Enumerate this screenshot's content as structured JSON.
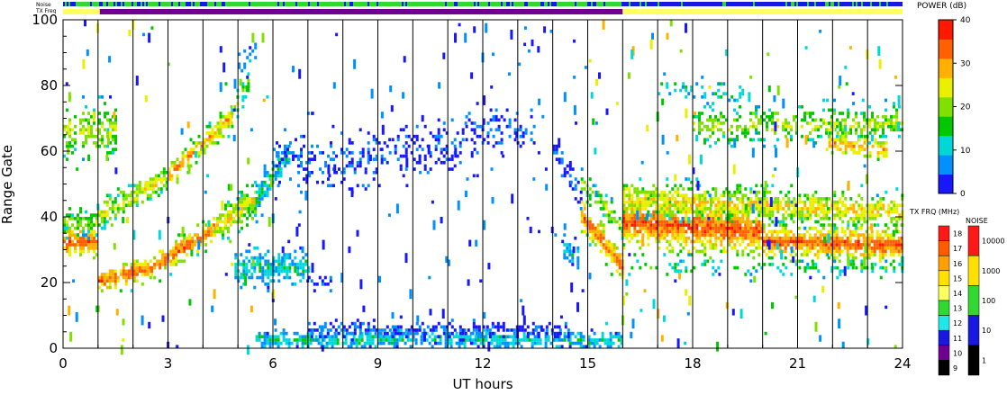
{
  "chart_data": {
    "type": "heatmap",
    "xlabel": "UT hours",
    "ylabel": "Range Gate",
    "xlim": [
      0,
      24
    ],
    "ylim": [
      0,
      100
    ],
    "x_ticks": [
      0,
      3,
      6,
      9,
      12,
      15,
      18,
      21,
      24
    ],
    "y_ticks": [
      0,
      20,
      40,
      60,
      80,
      100
    ],
    "x_tick_labels": [
      "0",
      "3",
      "6",
      "9",
      "12",
      "15",
      "18",
      "21",
      "24"
    ],
    "y_tick_labels": [
      "0",
      "20",
      "40",
      "60",
      "80",
      "100"
    ],
    "strip_labels": {
      "noise": "Noise",
      "txfreq": "TX Freq"
    },
    "power_colorbar": {
      "title": "POWER (dB)",
      "range": [
        0,
        40
      ],
      "ticks": [
        0,
        10,
        20,
        30,
        40
      ],
      "tick_labels": [
        "0",
        "10",
        "20",
        "30",
        "40"
      ],
      "colors": [
        "#1818ff",
        "#0090ff",
        "#00d8d8",
        "#00c800",
        "#80e000",
        "#e8f000",
        "#ffb000",
        "#ff6000",
        "#ff1800"
      ]
    },
    "txfreq_colorbar": {
      "title": "TX FRQ (MHz)",
      "labels": [
        "18",
        "17",
        "16",
        "15",
        "14",
        "13",
        "12",
        "11",
        "10",
        "9"
      ],
      "colors": [
        "#ff1818",
        "#ff5a00",
        "#ffa000",
        "#ffe000",
        "#ffff60",
        "#30d830",
        "#20e8e8",
        "#1818e0",
        "#700090",
        "#000000"
      ]
    },
    "noise_colorbar": {
      "title": "NOISE",
      "labels": [
        "10000",
        "1000",
        "100",
        "10",
        "1"
      ],
      "colors": [
        "#ff1818",
        "#ffe000",
        "#30d830",
        "#1818e0",
        "#000000"
      ]
    },
    "scan_boundaries_ut": [
      1,
      2,
      3,
      4,
      5,
      6,
      7,
      8,
      9,
      10,
      11,
      12,
      13,
      14,
      15,
      16,
      17,
      18,
      19,
      20,
      21,
      22,
      23
    ],
    "txfreq_segments": [
      {
        "start": 0,
        "end": 1.05,
        "mhz": 14
      },
      {
        "start": 1.05,
        "end": 16.0,
        "mhz": 10
      },
      {
        "start": 16.0,
        "end": 24,
        "mhz": 14
      }
    ],
    "echo_regions": [
      {
        "ut_start": 0.0,
        "ut_end": 1.0,
        "gate_center": 32,
        "gate_end": 32,
        "width": 4,
        "power": 34,
        "density": 0.95
      },
      {
        "ut_start": 0.0,
        "ut_end": 1.0,
        "gate_center": 38,
        "gate_end": 38,
        "width": 3,
        "power": 20,
        "density": 0.6
      },
      {
        "ut_start": 0.0,
        "ut_end": 1.5,
        "gate_center": 66,
        "gate_end": 66,
        "width": 6,
        "power": 22,
        "density": 0.6
      },
      {
        "ut_start": 1.0,
        "ut_end": 2.5,
        "gate_center": 20,
        "gate_end": 24,
        "width": 3,
        "power": 34,
        "density": 0.95
      },
      {
        "ut_start": 2.5,
        "ut_end": 4.3,
        "gate_center": 24,
        "gate_end": 36,
        "width": 3,
        "power": 34,
        "density": 0.9
      },
      {
        "ut_start": 4.3,
        "ut_end": 5.5,
        "gate_center": 36,
        "gate_end": 45,
        "width": 4,
        "power": 26,
        "density": 0.85
      },
      {
        "ut_start": 5.5,
        "ut_end": 6.5,
        "gate_center": 45,
        "gate_end": 60,
        "width": 5,
        "power": 12,
        "density": 0.7
      },
      {
        "ut_start": 1.0,
        "ut_end": 3.0,
        "gate_center": 40,
        "gate_end": 52,
        "width": 3,
        "power": 25,
        "density": 0.85
      },
      {
        "ut_start": 3.0,
        "ut_end": 4.8,
        "gate_center": 52,
        "gate_end": 70,
        "width": 3,
        "power": 31,
        "density": 0.85
      },
      {
        "ut_start": 4.8,
        "ut_end": 5.3,
        "gate_center": 70,
        "gate_end": 82,
        "width": 3,
        "power": 20,
        "density": 0.5
      },
      {
        "ut_start": 5.0,
        "ut_end": 5.5,
        "gate_center": 85,
        "gate_end": 90,
        "width": 3,
        "power": 10,
        "density": 0.5
      },
      {
        "ut_start": 4.9,
        "ut_end": 7.0,
        "gate_center": 24,
        "gate_end": 24,
        "width": 4,
        "power": 12,
        "density": 0.75
      },
      {
        "ut_start": 7.0,
        "ut_end": 7.8,
        "gate_center": 20,
        "gate_end": 20,
        "width": 2,
        "power": 4,
        "density": 0.4
      },
      {
        "ut_start": 6.0,
        "ut_end": 8.0,
        "gate_center": 58,
        "gate_end": 56,
        "width": 6,
        "power": 5,
        "density": 0.35
      },
      {
        "ut_start": 8.0,
        "ut_end": 11.5,
        "gate_center": 56,
        "gate_end": 62,
        "width": 6,
        "power": 4,
        "density": 0.3
      },
      {
        "ut_start": 11.5,
        "ut_end": 13.5,
        "gate_center": 66,
        "gate_end": 66,
        "width": 5,
        "power": 4,
        "density": 0.3
      },
      {
        "ut_start": 14.0,
        "ut_end": 14.8,
        "gate_center": 60,
        "gate_end": 45,
        "width": 3,
        "power": 5,
        "density": 0.5
      },
      {
        "ut_start": 14.3,
        "ut_end": 14.7,
        "gate_center": 28,
        "gate_end": 28,
        "width": 4,
        "power": 10,
        "density": 0.6
      },
      {
        "ut_start": 5.5,
        "ut_end": 16.0,
        "gate_center": 2,
        "gate_end": 2,
        "width": 2,
        "power": 12,
        "density": 0.85
      },
      {
        "ut_start": 7.0,
        "ut_end": 14.5,
        "gate_center": 5,
        "gate_end": 5,
        "width": 2,
        "power": 5,
        "density": 0.6
      },
      {
        "ut_start": 14.8,
        "ut_end": 16.0,
        "gate_center": 40,
        "gate_end": 24,
        "width": 4,
        "power": 33,
        "density": 0.95
      },
      {
        "ut_start": 14.8,
        "ut_end": 16.0,
        "gate_center": 50,
        "gate_end": 36,
        "width": 3,
        "power": 22,
        "density": 0.6
      },
      {
        "ut_start": 16.0,
        "ut_end": 20.0,
        "gate_center": 38,
        "gate_end": 35,
        "width": 6,
        "power": 35,
        "density": 0.97
      },
      {
        "ut_start": 20.0,
        "ut_end": 24.0,
        "gate_center": 32,
        "gate_end": 31,
        "width": 4,
        "power": 35,
        "density": 0.97
      },
      {
        "ut_start": 16.0,
        "ut_end": 24.0,
        "gate_center": 45,
        "gate_end": 41,
        "width": 4,
        "power": 27,
        "density": 0.8
      },
      {
        "ut_start": 16.0,
        "ut_end": 24.0,
        "gate_center": 24,
        "gate_end": 24,
        "width": 2,
        "power": 15,
        "density": 0.25
      },
      {
        "ut_start": 18.0,
        "ut_end": 24.0,
        "gate_center": 67,
        "gate_end": 68,
        "width": 4,
        "power": 22,
        "density": 0.55
      },
      {
        "ut_start": 21.8,
        "ut_end": 23.5,
        "gate_center": 62,
        "gate_end": 60,
        "width": 3,
        "power": 30,
        "density": 0.7
      },
      {
        "ut_start": 17.0,
        "ut_end": 19.5,
        "gate_center": 80,
        "gate_end": 75,
        "width": 3,
        "power": 12,
        "density": 0.25
      }
    ]
  }
}
